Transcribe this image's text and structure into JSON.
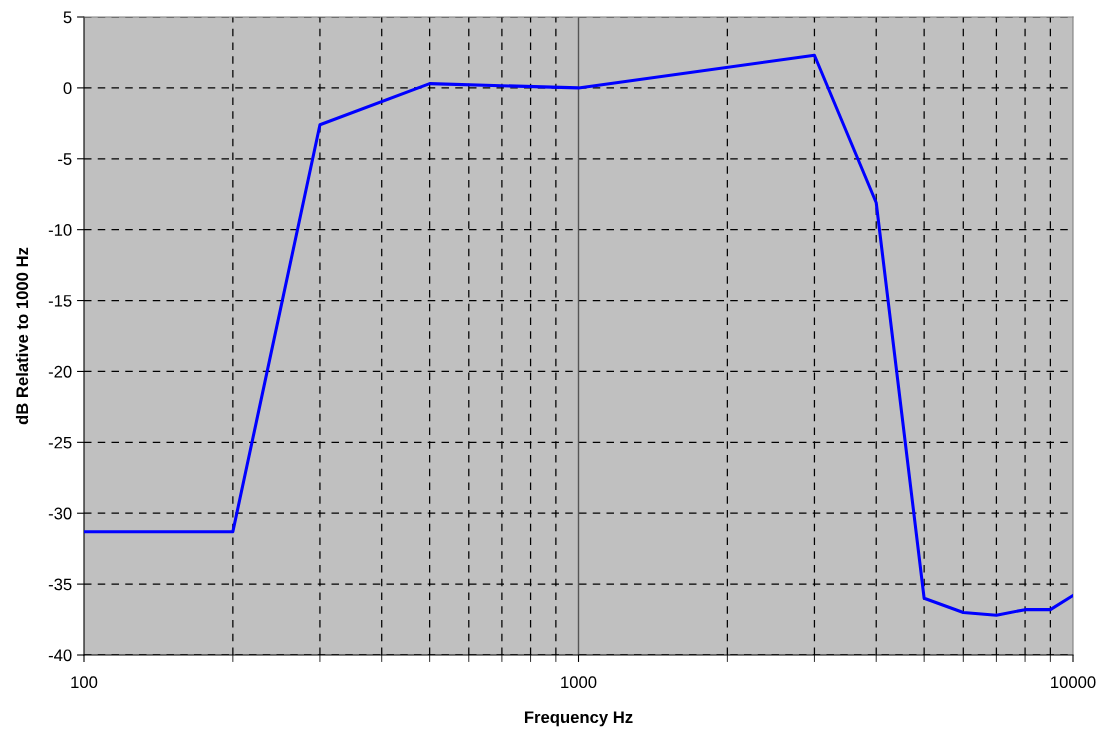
{
  "chart_data": {
    "type": "line",
    "xlabel": "Frequency Hz",
    "ylabel": "dB Relative to 1000 Hz",
    "log": "x",
    "grid": true,
    "legend": false,
    "marker": "none",
    "line_style": "solid",
    "x": [
      100,
      200,
      300,
      500,
      1000,
      3000,
      4000,
      5000,
      6000,
      7000,
      8000,
      9000,
      10000
    ],
    "series": [
      {
        "color": "#0000ff",
        "values": [
          -31.3,
          -31.3,
          -2.6,
          0.3,
          0,
          2.3,
          -8.1,
          -36.0,
          -37.0,
          -37.2,
          -36.8,
          -36.8,
          -35.8
        ]
      }
    ],
    "xlim": [
      100,
      10000
    ],
    "ylim": [
      -40,
      5
    ],
    "xticks": [
      100,
      {
        "value": 200,
        "label": null
      },
      {
        "value": 300,
        "label": null
      },
      {
        "value": 400,
        "label": null
      },
      {
        "value": 500,
        "label": null
      },
      {
        "value": 600,
        "label": null
      },
      {
        "value": 700,
        "label": null
      },
      {
        "value": 800,
        "label": null
      },
      {
        "value": 900,
        "label": null
      },
      1000,
      {
        "value": 2000,
        "label": null
      },
      {
        "value": 3000,
        "label": null
      },
      {
        "value": 4000,
        "label": null
      },
      {
        "value": 5000,
        "label": null
      },
      {
        "value": 6000,
        "label": null
      },
      {
        "value": 7000,
        "label": null
      },
      {
        "value": 8000,
        "label": null
      },
      {
        "value": 9000,
        "label": null
      },
      10000
    ],
    "yticks": [
      -40,
      -35,
      -30,
      -25,
      -20,
      -15,
      -10,
      -5,
      0,
      5
    ],
    "ref_lines": [
      {
        "axis": "x",
        "value": 1000,
        "color": "#555555",
        "line_style": "solid"
      }
    ]
  }
}
